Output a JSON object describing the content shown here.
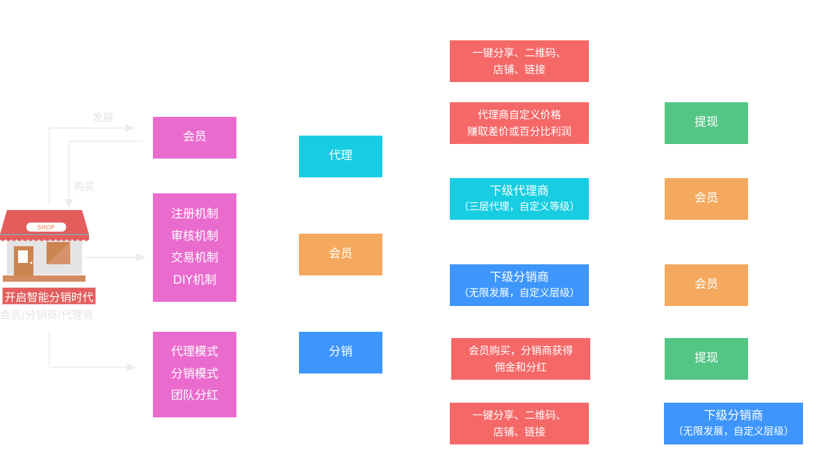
{
  "flow_labels": {
    "develop": "发展",
    "buy": "购买"
  },
  "shop": {
    "sign": "SHOP",
    "title": "开启智能分销时代",
    "subtitle": "会员/分销商/代理商"
  },
  "column1": [
    {
      "lines": [
        "会员"
      ],
      "color": "#ea6bce"
    },
    {
      "lines": [
        "注册机制",
        "审核机制",
        "交易机制",
        "DIY机制"
      ],
      "color": "#ea6bce"
    },
    {
      "lines": [
        "代理模式",
        "分销模式",
        "团队分红"
      ],
      "color": "#ea6bce"
    }
  ],
  "column2": [
    {
      "lines": [
        "代理"
      ],
      "color": "#18cde1"
    },
    {
      "lines": [
        "会员"
      ],
      "color": "#f4a95e"
    },
    {
      "lines": [
        "分销"
      ],
      "color": "#3e96fc"
    }
  ],
  "column3": [
    {
      "lines": [
        "一键分享、二维码、",
        "店铺、链接"
      ],
      "color": "#f56868"
    },
    {
      "lines": [
        "代理商自定义价格",
        "赚取差价或百分比利润"
      ],
      "color": "#f56868"
    },
    {
      "lines": [
        "下级代理商",
        "（三层代理，自定义等级）"
      ],
      "color": "#18cde1"
    },
    {
      "lines": [
        "下级分销商",
        "（无限发展，自定义层级）"
      ],
      "color": "#3e96fc"
    },
    {
      "lines": [
        "会员购买，分销商获得",
        "佣金和分红"
      ],
      "color": "#f56868"
    },
    {
      "lines": [
        "一键分享、二维码、",
        "店铺、链接"
      ],
      "color": "#f56868"
    }
  ],
  "column4": [
    {
      "lines": [
        "提现"
      ],
      "color": "#53c685"
    },
    {
      "lines": [
        "会员"
      ],
      "color": "#f4a95e"
    },
    {
      "lines": [
        "会员"
      ],
      "color": "#f4a95e"
    },
    {
      "lines": [
        "提现"
      ],
      "color": "#53c685"
    },
    {
      "lines": [
        "下级分销商",
        "（无限发展，自定义层级）"
      ],
      "color": "#3e96fc"
    }
  ]
}
